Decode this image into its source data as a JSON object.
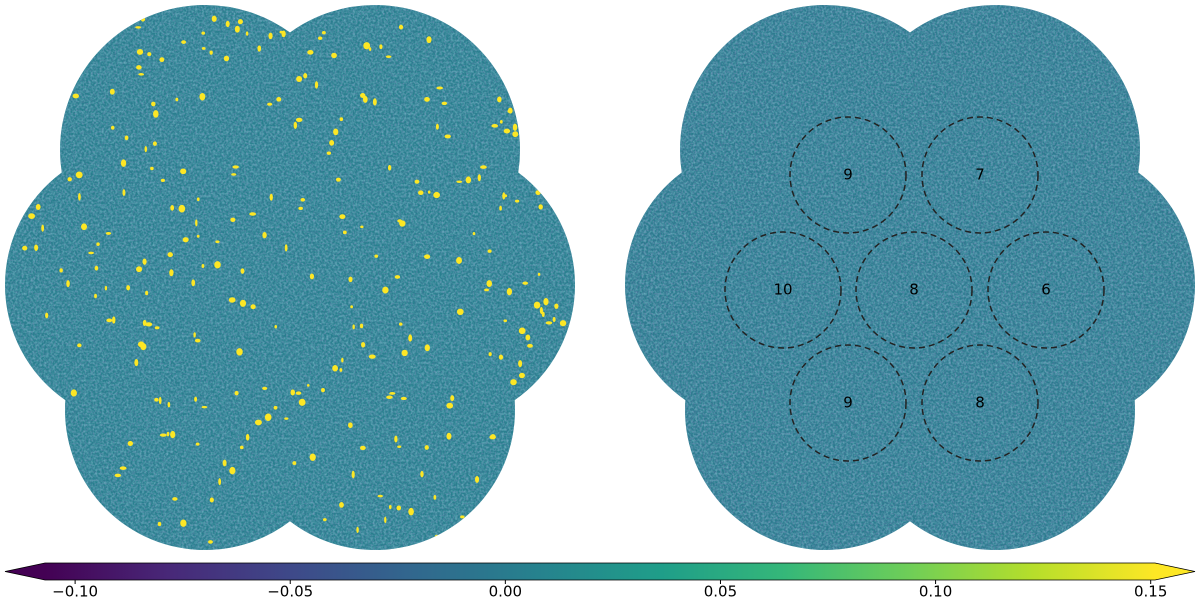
{
  "chart_data": {
    "type": "image",
    "colorbar": {
      "lim": [
        -0.107,
        0.151
      ],
      "ticks": [
        {
          "value": -0.1,
          "label": "−0.10"
        },
        {
          "value": -0.05,
          "label": "−0.05"
        },
        {
          "value": 0,
          "label": "0.00"
        },
        {
          "value": 0.05,
          "label": "0.05"
        },
        {
          "value": 0.1,
          "label": "0.10"
        },
        {
          "value": 0.15,
          "label": "0.15"
        }
      ],
      "colors": [
        "#440154",
        "#482878",
        "#3e4989",
        "#31688e",
        "#26828e",
        "#1f9e89",
        "#35b779",
        "#6ece58",
        "#b5de2b",
        "#fde725"
      ]
    },
    "regions": {
      "labels": [
        9,
        7,
        10,
        8,
        6,
        9,
        8
      ]
    }
  }
}
